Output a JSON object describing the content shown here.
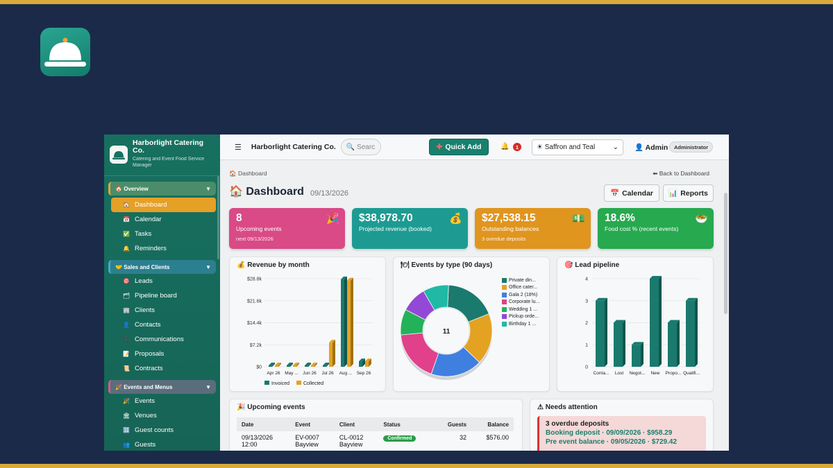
{
  "sidebar": {
    "brand": "Harborlight Catering Co.",
    "subtitle": "Catering and Event Food Service Manager",
    "groups": [
      {
        "label": "Overview",
        "items": [
          {
            "label": "Dashboard",
            "icon": "house-icon",
            "active": true
          },
          {
            "label": "Calendar",
            "icon": "calendar-icon"
          },
          {
            "label": "Tasks",
            "icon": "checkmark-icon"
          },
          {
            "label": "Reminders",
            "icon": "bell-icon"
          }
        ]
      },
      {
        "label": "Sales and Clients",
        "items": [
          {
            "label": "Leads",
            "icon": "target-icon"
          },
          {
            "label": "Pipeline board",
            "icon": "folder-icon"
          },
          {
            "label": "Clients",
            "icon": "building-icon"
          },
          {
            "label": "Contacts",
            "icon": "person-icon"
          },
          {
            "label": "Communications",
            "icon": "phone-icon"
          },
          {
            "label": "Proposals",
            "icon": "memo-icon"
          },
          {
            "label": "Contracts",
            "icon": "scroll-icon"
          }
        ]
      },
      {
        "label": "Events and Menus",
        "items": [
          {
            "label": "Events",
            "icon": "party-icon"
          },
          {
            "label": "Venues",
            "icon": "columns-icon"
          },
          {
            "label": "Guest counts",
            "icon": "numbers-icon"
          },
          {
            "label": "Guests",
            "icon": "people-icon"
          }
        ]
      }
    ]
  },
  "topbar": {
    "title": "Harborlight Catering Co.",
    "search_placeholder": "Searc",
    "quick_add": "Quick Add",
    "notifications": "1",
    "theme": "Saffron and Teal",
    "user": "Admin",
    "role": "Administrator"
  },
  "page": {
    "breadcrumb": "Dashboard",
    "back": "Back to Dashboard",
    "title": "Dashboard",
    "date": "09/13/2026",
    "calendar_btn": "Calendar",
    "reports_btn": "Reports"
  },
  "kpis": [
    {
      "value": "8",
      "label": "Upcoming events",
      "sub": "next 09/13/2026",
      "color": "#d94a86",
      "icon": "party-popper-icon"
    },
    {
      "value": "$38,978.70",
      "label": "Projected revenue (booked)",
      "sub": "",
      "color": "#1d9b92",
      "icon": "money-bag-icon"
    },
    {
      "value": "$27,538.15",
      "label": "Outstanding balances",
      "sub": "3 overdue deposits",
      "color": "#e0951f",
      "icon": "banknote-icon"
    },
    {
      "value": "18.6%",
      "label": "Food cost % (recent events)",
      "sub": "",
      "color": "#27a94f",
      "icon": "salad-icon"
    }
  ],
  "chart_data": [
    {
      "type": "bar",
      "title": "Revenue by month",
      "categories": [
        "Apr 26",
        "May ...",
        "Jun 26",
        "Jul 26",
        "Aug ...",
        "Sep 26"
      ],
      "series": [
        {
          "name": "Invoiced",
          "values": [
            200,
            200,
            200,
            200,
            28600,
            1800
          ],
          "color": "#1a7a6e"
        },
        {
          "name": "Collected",
          "values": [
            200,
            200,
            200,
            7900,
            28200,
            1800
          ],
          "color": "#e4a223"
        }
      ],
      "y_ticks": [
        "$0",
        "$7.2k",
        "$14.4k",
        "$21.6k",
        "$28.8k"
      ],
      "ylim": [
        0,
        28800
      ]
    },
    {
      "type": "pie",
      "title": "Events by type (90 days)",
      "center_label": "11",
      "slices": [
        {
          "label": "Private din...",
          "value": 2,
          "color": "#1a7a6e"
        },
        {
          "label": "Office cater...",
          "value": 2,
          "color": "#e4a223"
        },
        {
          "label": "Gala  2  (18%)",
          "value": 2,
          "color": "#3f7fe0"
        },
        {
          "label": "Corporate lu...",
          "value": 2,
          "color": "#e0418a"
        },
        {
          "label": "Wedding  1  ...",
          "value": 1,
          "color": "#22b35a"
        },
        {
          "label": "Pickup orde...",
          "value": 1,
          "color": "#9448d6"
        },
        {
          "label": "Birthday  1  ...",
          "value": 1,
          "color": "#1fb9a5"
        }
      ]
    },
    {
      "type": "bar",
      "title": "Lead pipeline",
      "categories": [
        "Conta...",
        "Lost",
        "Negot...",
        "New",
        "Propo...",
        "Qualifi..."
      ],
      "values": [
        3,
        2,
        1,
        4,
        2,
        3
      ],
      "y_ticks": [
        "0",
        "1",
        "2",
        "3",
        "4"
      ],
      "ylim": [
        0,
        4
      ],
      "color": "#1a7a6e"
    }
  ],
  "upcoming": {
    "title": "Upcoming events",
    "columns": [
      "Date",
      "Event",
      "Client",
      "Status",
      "Guests",
      "Balance"
    ],
    "rows": [
      {
        "date": "09/13/2026",
        "time": "12:00",
        "event": "EV-0007",
        "event_sub": "Bayview",
        "client": "CL-0012",
        "client_sub": "Bayview",
        "status": "Confirmed",
        "guests": "32",
        "balance": "$576.00"
      }
    ]
  },
  "attention": {
    "title": "Needs attention",
    "head": "3 overdue deposits",
    "lines": [
      "Booking deposit · 09/09/2026 · $958.29",
      "Pre event balance · 09/05/2026 · $729.42"
    ]
  }
}
